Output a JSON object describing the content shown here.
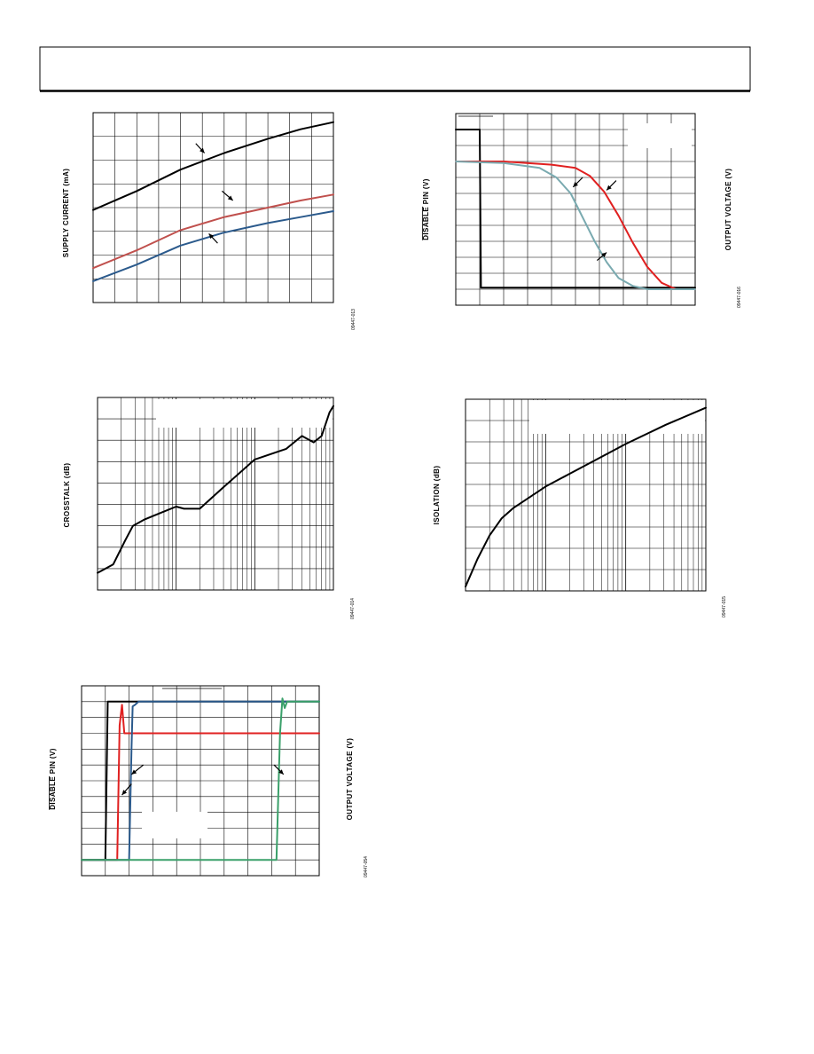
{
  "header": {
    "text": ""
  },
  "chart_data": [
    {
      "type": "line",
      "ylabel": "SUPPLY CURRENT (mA)",
      "figure_code": "09447-013",
      "scale": "linear",
      "x_divisions": 11,
      "y_divisions": 8,
      "xlim": [
        0,
        11
      ],
      "ylim": [
        0,
        8
      ],
      "grid": true,
      "series": [
        {
          "color": "#000000",
          "x": [
            0,
            2,
            4,
            6,
            8,
            9.5,
            11
          ],
          "y": [
            3.9,
            4.7,
            5.6,
            6.3,
            6.9,
            7.3,
            7.6
          ]
        },
        {
          "color": "#c0504d",
          "x": [
            0,
            2,
            4,
            6,
            8,
            9.5,
            11
          ],
          "y": [
            1.45,
            2.2,
            3.05,
            3.6,
            4.0,
            4.3,
            4.55
          ]
        },
        {
          "color": "#2b5a8c",
          "x": [
            0,
            2,
            4,
            6,
            8,
            9.5,
            11
          ],
          "y": [
            0.9,
            1.6,
            2.4,
            2.95,
            3.35,
            3.6,
            3.85
          ]
        }
      ],
      "arrows": [
        {
          "x": [
            4.7,
            5.1
          ],
          "y": [
            6.7,
            6.3
          ]
        },
        {
          "x": [
            5.9,
            6.4
          ],
          "y": [
            4.7,
            4.3
          ]
        },
        {
          "x": [
            5.7,
            5.3
          ],
          "y": [
            2.5,
            2.9
          ]
        }
      ]
    },
    {
      "type": "line",
      "ylabel": "DISABLE PIN (V)",
      "ylabel_overline": "DISABLE",
      "ylabel_right": "OUTPUT VOLTAGE (V)",
      "figure_code": "09447-016",
      "scale": "linear",
      "x_divisions": 10,
      "y_divisions": 12,
      "xlim": [
        0,
        10
      ],
      "ylim": [
        0,
        12
      ],
      "grid": true,
      "series": [
        {
          "color": "#000000",
          "x": [
            0,
            1.0,
            1.05,
            2,
            10
          ],
          "y": [
            11.0,
            11.0,
            1.1,
            1.1,
            1.1
          ]
        },
        {
          "color": "#e02020",
          "x": [
            0,
            2,
            4,
            5,
            5.6,
            6.2,
            6.8,
            7.4,
            8,
            8.6,
            9.2,
            10
          ],
          "y": [
            9.0,
            9.0,
            8.8,
            8.6,
            8.1,
            7.1,
            5.6,
            3.9,
            2.4,
            1.4,
            1.0,
            1.0
          ]
        },
        {
          "color": "#7aaab0",
          "x": [
            0,
            2,
            3.5,
            4.2,
            4.8,
            5.3,
            5.8,
            6.3,
            6.8,
            7.4,
            8,
            10
          ],
          "y": [
            9.0,
            8.9,
            8.6,
            8.0,
            7.0,
            5.5,
            4.0,
            2.7,
            1.7,
            1.2,
            1.0,
            1.0
          ]
        }
      ],
      "arrows": [
        {
          "x": [
            5.3,
            4.9
          ],
          "y": [
            8.0,
            7.4
          ]
        },
        {
          "x": [
            6.7,
            6.3
          ],
          "y": [
            7.8,
            7.2
          ]
        },
        {
          "x": [
            5.9,
            6.3
          ],
          "y": [
            2.8,
            3.3
          ]
        }
      ]
    },
    {
      "type": "line",
      "ylabel": "CROSSTALK (dB)",
      "figure_code": "09447-014",
      "scale": "log-x",
      "decades": 3,
      "y_divisions": 9,
      "xlim": [
        0,
        3
      ],
      "ylim": [
        0,
        9
      ],
      "grid": true,
      "series": [
        {
          "color": "#000000",
          "x": [
            0,
            0.2,
            0.35,
            0.45,
            0.6,
            0.8,
            1.0,
            1.1,
            1.3,
            1.6,
            2.0,
            2.4,
            2.6,
            2.75,
            2.85,
            2.95,
            3.0
          ],
          "y": [
            0.8,
            1.2,
            2.3,
            3.0,
            3.3,
            3.6,
            3.9,
            3.8,
            3.8,
            4.8,
            6.1,
            6.6,
            7.2,
            6.9,
            7.2,
            8.3,
            8.6
          ]
        }
      ]
    },
    {
      "type": "line",
      "ylabel": "ISOLATION (dB)",
      "figure_code": "09447-015",
      "scale": "log-x",
      "decades": 3,
      "y_divisions": 9,
      "xlim": [
        0,
        3
      ],
      "ylim": [
        0,
        9
      ],
      "grid": true,
      "series": [
        {
          "color": "#000000",
          "x": [
            0,
            0.15,
            0.3,
            0.45,
            0.6,
            0.8,
            1.0,
            1.3,
            1.6,
            2.0,
            2.5,
            3.0
          ],
          "y": [
            0.2,
            1.5,
            2.6,
            3.4,
            3.9,
            4.4,
            4.9,
            5.5,
            6.1,
            6.9,
            7.8,
            8.6
          ]
        }
      ]
    },
    {
      "type": "line",
      "ylabel": "DISABLE PIN (V)",
      "ylabel_overline": "DISABLE",
      "ylabel_right": "OUTPUT VOLTAGE (V)",
      "figure_code": "09447-054",
      "scale": "linear",
      "x_divisions": 10,
      "y_divisions": 12,
      "xlim": [
        0,
        10
      ],
      "ylim": [
        0,
        12
      ],
      "grid": true,
      "series": [
        {
          "color": "#000000",
          "x": [
            0,
            0.95,
            1.0,
            1.1,
            10
          ],
          "y": [
            1.0,
            1.0,
            1.0,
            11.0,
            11.0
          ]
        },
        {
          "color": "#e02020",
          "x": [
            0,
            1.5,
            1.6,
            1.7,
            1.8,
            10
          ],
          "y": [
            1.0,
            1.0,
            9.5,
            10.8,
            9.0,
            9.0
          ]
        },
        {
          "color": "#2b5a8c",
          "x": [
            0,
            2.0,
            2.1,
            2.15,
            2.25,
            2.4,
            10
          ],
          "y": [
            1.0,
            1.0,
            8.0,
            10.7,
            10.8,
            11.0,
            11.0
          ]
        },
        {
          "color": "#3aa06a",
          "x": [
            0,
            8.2,
            8.35,
            8.45,
            8.55,
            8.65,
            10
          ],
          "y": [
            1.0,
            1.0,
            9.0,
            11.2,
            10.6,
            11.0,
            11.0
          ]
        }
      ],
      "arrows": [
        {
          "x": [
            2.6,
            2.1
          ],
          "y": [
            7.0,
            6.4
          ]
        },
        {
          "x": [
            2.1,
            1.7
          ],
          "y": [
            5.8,
            5.1
          ]
        },
        {
          "x": [
            8.1,
            8.5
          ],
          "y": [
            7.0,
            6.4
          ]
        }
      ]
    }
  ]
}
